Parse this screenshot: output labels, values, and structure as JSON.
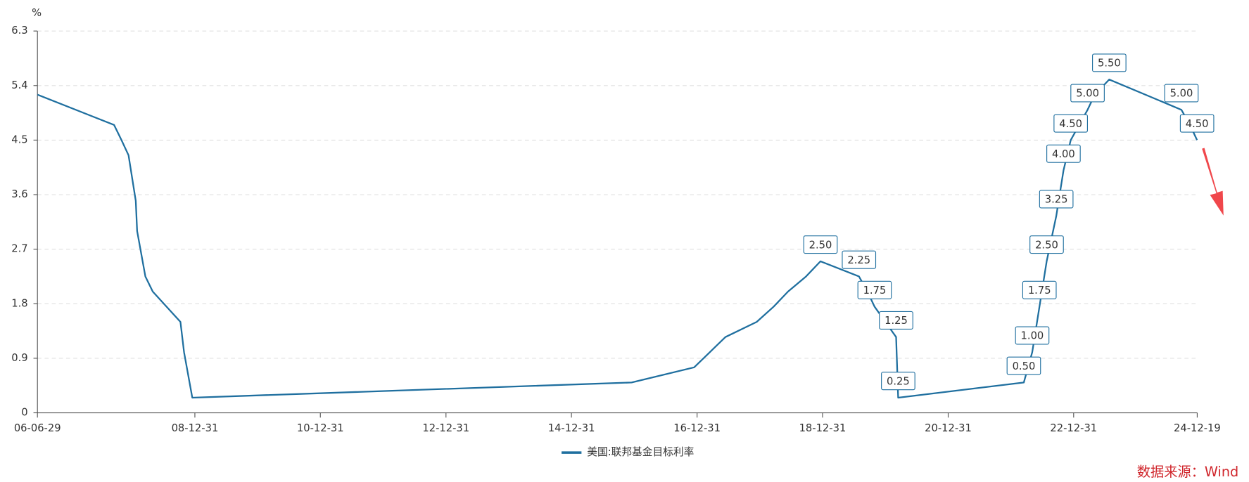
{
  "chart_data": {
    "type": "line",
    "y_label": "%",
    "x": [
      "06-06-29",
      "07-09-18",
      "07-10-31",
      "07-12-11",
      "08-01-22",
      "08-01-30",
      "08-03-18",
      "08-04-30",
      "08-10-08",
      "08-10-29",
      "08-12-16",
      "15-12-16",
      "16-12-14",
      "17-03-15",
      "17-06-14",
      "17-12-13",
      "18-03-21",
      "18-06-13",
      "18-09-26",
      "18-12-19",
      "19-07-31",
      "19-09-18",
      "19-10-30",
      "20-03-03",
      "20-03-15",
      "22-03-16",
      "22-05-04",
      "22-06-15",
      "22-07-27",
      "22-09-21",
      "22-11-02",
      "22-12-14",
      "23-02-01",
      "23-03-22",
      "23-05-03",
      "23-07-26",
      "24-09-18",
      "24-11-07",
      "24-12-18"
    ],
    "series": [
      {
        "name": "美国:联邦基金目标利率",
        "color": "#1f6f9f",
        "values": [
          5.25,
          4.75,
          4.5,
          4.25,
          3.5,
          3.0,
          2.25,
          2.0,
          1.5,
          1.0,
          0.25,
          0.5,
          0.75,
          1.0,
          1.25,
          1.5,
          1.75,
          2.0,
          2.25,
          2.5,
          2.25,
          2.0,
          1.75,
          1.25,
          0.25,
          0.5,
          1.0,
          1.75,
          2.5,
          3.25,
          4.0,
          4.5,
          4.75,
          5.0,
          5.25,
          5.5,
          5.0,
          4.75,
          4.5
        ],
        "value_labels": [
          null,
          null,
          null,
          null,
          null,
          null,
          null,
          null,
          null,
          null,
          null,
          null,
          null,
          null,
          null,
          null,
          null,
          null,
          null,
          "2.50",
          "2.25",
          null,
          "1.75",
          "1.25",
          "0.25",
          "0.50",
          "1.00",
          "1.75",
          "2.50",
          "3.25",
          "4.00",
          "4.50",
          null,
          "5.00",
          null,
          "5.50",
          "5.00",
          null,
          "4.50"
        ]
      }
    ],
    "xlim": [
      "06-06-29",
      "24-12-19"
    ],
    "xticks": [
      "06-06-29",
      "08-12-31",
      "10-12-31",
      "12-12-31",
      "14-12-31",
      "16-12-31",
      "18-12-31",
      "20-12-31",
      "22-12-31",
      "24-12-19"
    ],
    "ylim": [
      0,
      6.3
    ],
    "yticks": [
      0,
      0.9,
      1.8,
      2.7,
      3.6,
      4.5,
      5.4,
      6.3
    ],
    "grid": true,
    "legend": "bottom",
    "source": "数据来源：Wind"
  }
}
